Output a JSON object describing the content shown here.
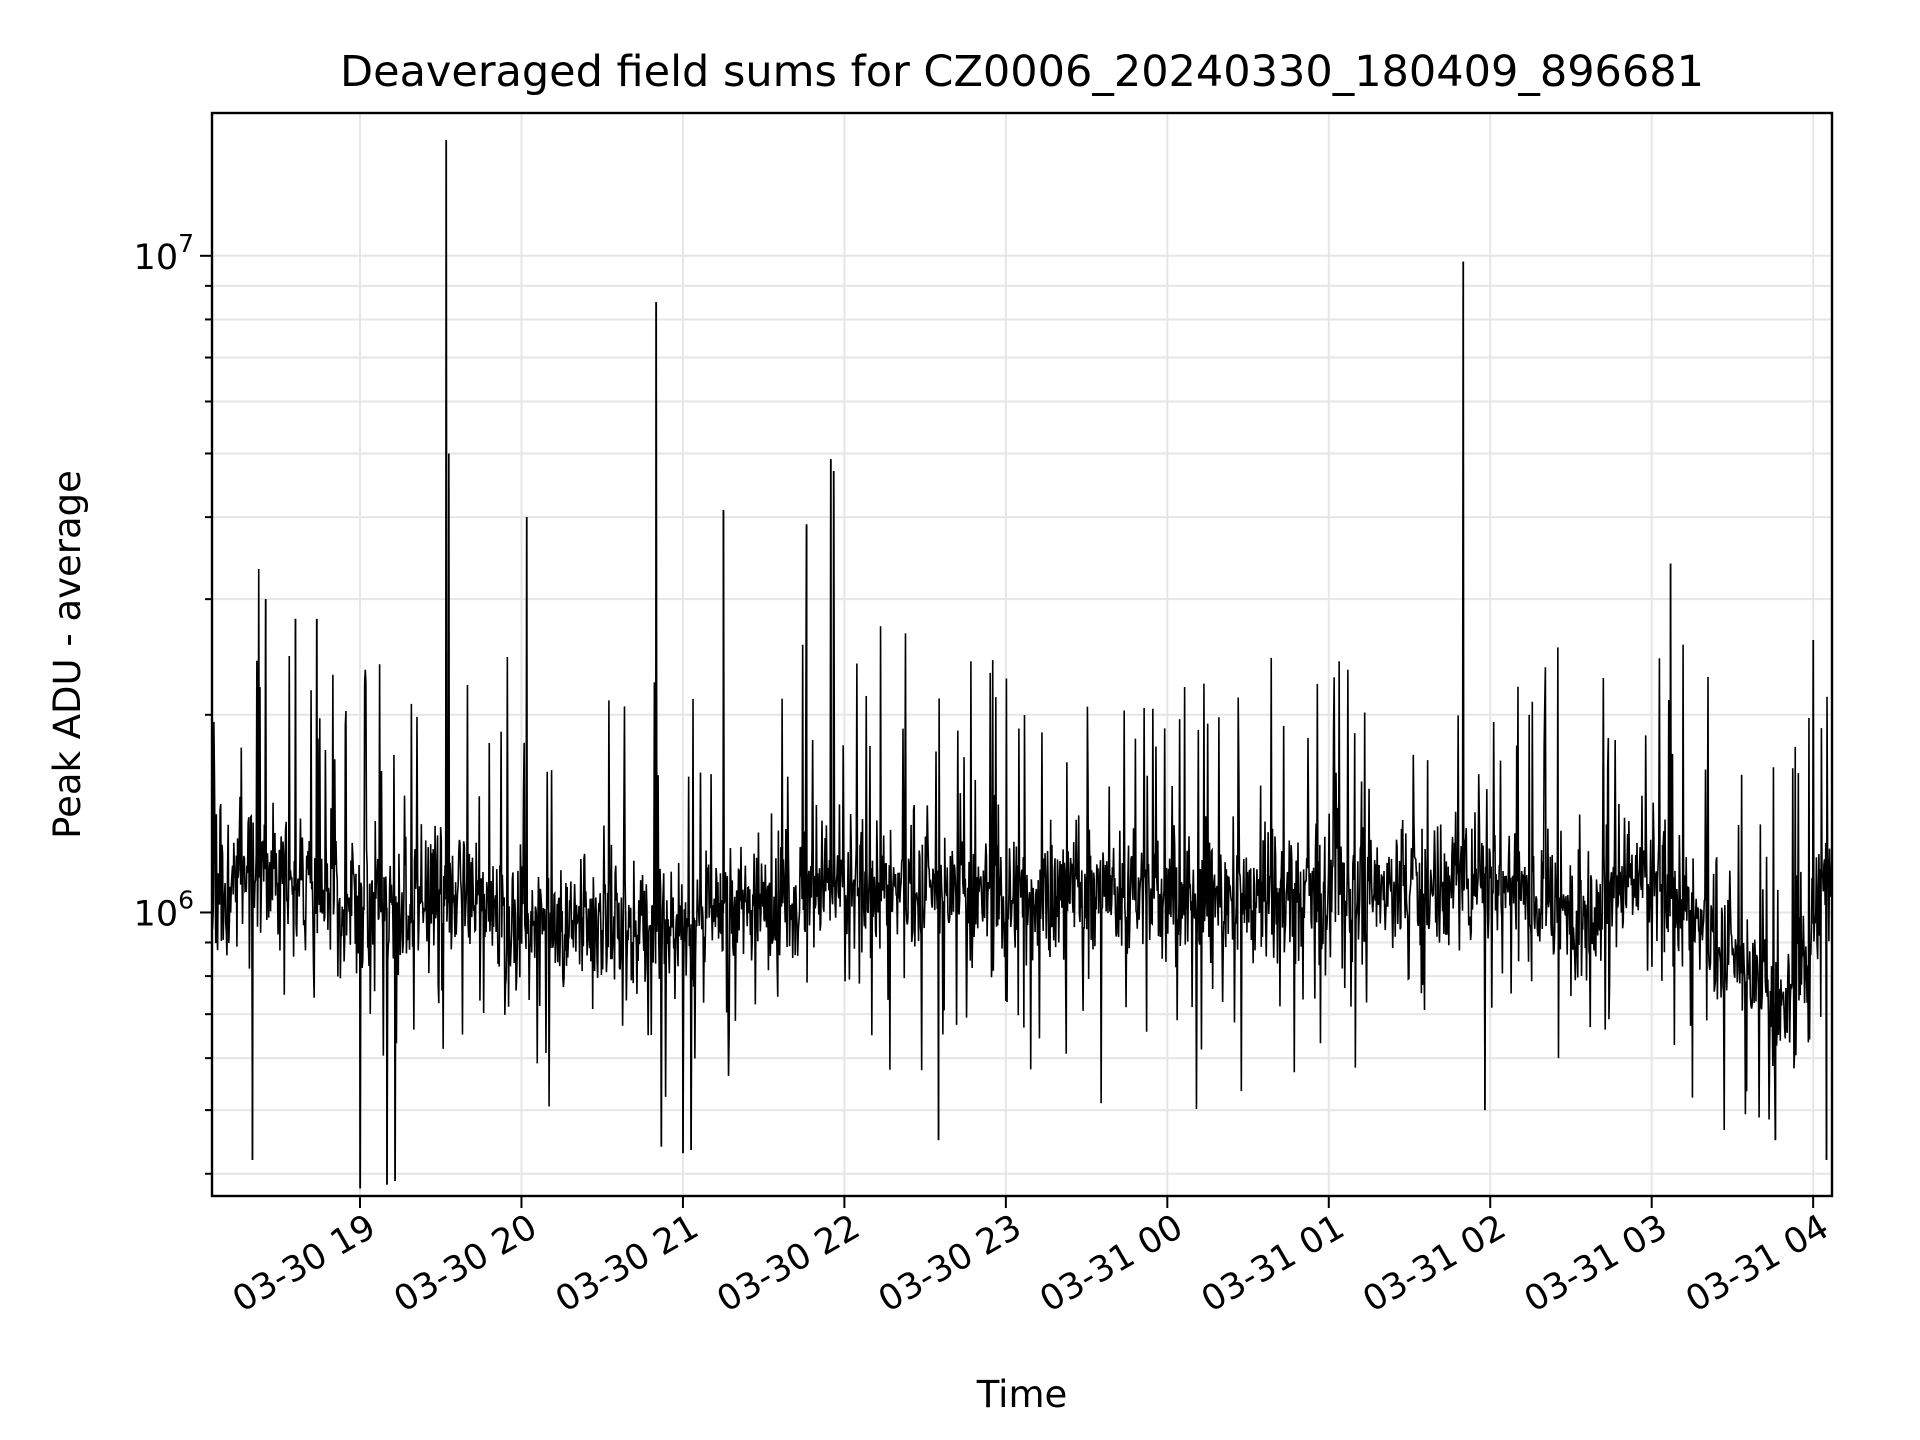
{
  "chart_data": {
    "type": "line",
    "title": "Deaveraged field sums for CZ0006_20240330_180409_896681",
    "xlabel": "Time",
    "ylabel": "Peak ADU - average",
    "y_scale": "log",
    "x_range": [
      "2024-03-30 18:05",
      "2024-03-31 04:07"
    ],
    "ylim": [
      370000,
      16500000
    ],
    "grid": true,
    "legend": "none",
    "line_color": "#000000",
    "x_ticks": [
      {
        "t": "2024-03-30 19:00",
        "label": "03-30 19"
      },
      {
        "t": "2024-03-30 20:00",
        "label": "03-30 20"
      },
      {
        "t": "2024-03-30 21:00",
        "label": "03-30 21"
      },
      {
        "t": "2024-03-30 22:00",
        "label": "03-30 22"
      },
      {
        "t": "2024-03-30 23:00",
        "label": "03-30 23"
      },
      {
        "t": "2024-03-31 00:00",
        "label": "03-31 00"
      },
      {
        "t": "2024-03-31 01:00",
        "label": "03-31 01"
      },
      {
        "t": "2024-03-31 02:00",
        "label": "03-31 02"
      },
      {
        "t": "2024-03-31 03:00",
        "label": "03-31 03"
      },
      {
        "t": "2024-03-31 04:00",
        "label": "03-31 04"
      }
    ],
    "y_major_ticks": [
      {
        "value": 1000000,
        "base": "10",
        "exp": "6"
      },
      {
        "value": 10000000,
        "base": "10",
        "exp": "7"
      }
    ],
    "y_minor_ticks": [
      400000,
      500000,
      600000,
      700000,
      800000,
      900000,
      2000000,
      3000000,
      4000000,
      5000000,
      6000000,
      7000000,
      8000000,
      9000000
    ],
    "baseline": [
      {
        "t": "2024-03-30 18:05",
        "y": 1100000
      },
      {
        "t": "2024-03-30 18:30",
        "y": 1200000
      },
      {
        "t": "2024-03-30 19:00",
        "y": 1000000
      },
      {
        "t": "2024-03-30 19:30",
        "y": 1050000
      },
      {
        "t": "2024-03-30 20:00",
        "y": 1000000
      },
      {
        "t": "2024-03-30 20:30",
        "y": 950000
      },
      {
        "t": "2024-03-30 21:00",
        "y": 950000
      },
      {
        "t": "2024-03-30 21:30",
        "y": 1050000
      },
      {
        "t": "2024-03-30 22:00",
        "y": 1100000
      },
      {
        "t": "2024-03-30 22:30",
        "y": 1080000
      },
      {
        "t": "2024-03-30 23:00",
        "y": 1050000
      },
      {
        "t": "2024-03-30 23:30",
        "y": 1100000
      },
      {
        "t": "2024-03-31 00:00",
        "y": 1050000
      },
      {
        "t": "2024-03-31 00:30",
        "y": 1050000
      },
      {
        "t": "2024-03-31 01:00",
        "y": 1080000
      },
      {
        "t": "2024-03-31 01:30",
        "y": 1100000
      },
      {
        "t": "2024-03-31 02:00",
        "y": 1150000
      },
      {
        "t": "2024-03-31 02:30",
        "y": 1000000
      },
      {
        "t": "2024-03-31 03:00",
        "y": 1150000
      },
      {
        "t": "2024-03-31 03:30",
        "y": 850000
      },
      {
        "t": "2024-03-31 03:50",
        "y": 700000
      },
      {
        "t": "2024-03-31 04:07",
        "y": 1200000
      }
    ],
    "peaks": [
      {
        "t": "2024-03-30 18:25",
        "y": 3000000
      },
      {
        "t": "2024-03-30 18:36",
        "y": 2800000
      },
      {
        "t": "2024-03-30 18:44",
        "y": 2800000
      },
      {
        "t": "2024-03-30 19:32",
        "y": 15000000
      },
      {
        "t": "2024-03-30 19:33",
        "y": 5000000
      },
      {
        "t": "2024-03-30 20:02",
        "y": 4000000
      },
      {
        "t": "2024-03-30 20:50",
        "y": 8500000
      },
      {
        "t": "2024-03-30 21:15",
        "y": 4100000
      },
      {
        "t": "2024-03-30 21:46",
        "y": 3900000
      },
      {
        "t": "2024-03-30 21:55",
        "y": 4900000
      },
      {
        "t": "2024-03-30 21:56",
        "y": 4700000
      },
      {
        "t": "2024-03-31 01:50",
        "y": 9800000
      },
      {
        "t": "2024-03-31 03:07",
        "y": 3400000
      },
      {
        "t": "2024-03-31 04:00",
        "y": 2600000
      }
    ],
    "dips": [
      {
        "t": "2024-03-30 18:20",
        "y": 420000
      },
      {
        "t": "2024-03-30 19:00",
        "y": 380000
      },
      {
        "t": "2024-03-30 19:10",
        "y": 385000
      },
      {
        "t": "2024-03-30 19:13",
        "y": 390000
      },
      {
        "t": "2024-03-30 20:52",
        "y": 440000
      },
      {
        "t": "2024-03-30 21:00",
        "y": 430000
      },
      {
        "t": "2024-03-30 21:03",
        "y": 435000
      },
      {
        "t": "2024-03-30 22:35",
        "y": 450000
      },
      {
        "t": "2024-03-31 01:58",
        "y": 500000
      },
      {
        "t": "2024-03-31 03:46",
        "y": 450000
      },
      {
        "t": "2024-03-31 04:05",
        "y": 420000
      }
    ]
  }
}
